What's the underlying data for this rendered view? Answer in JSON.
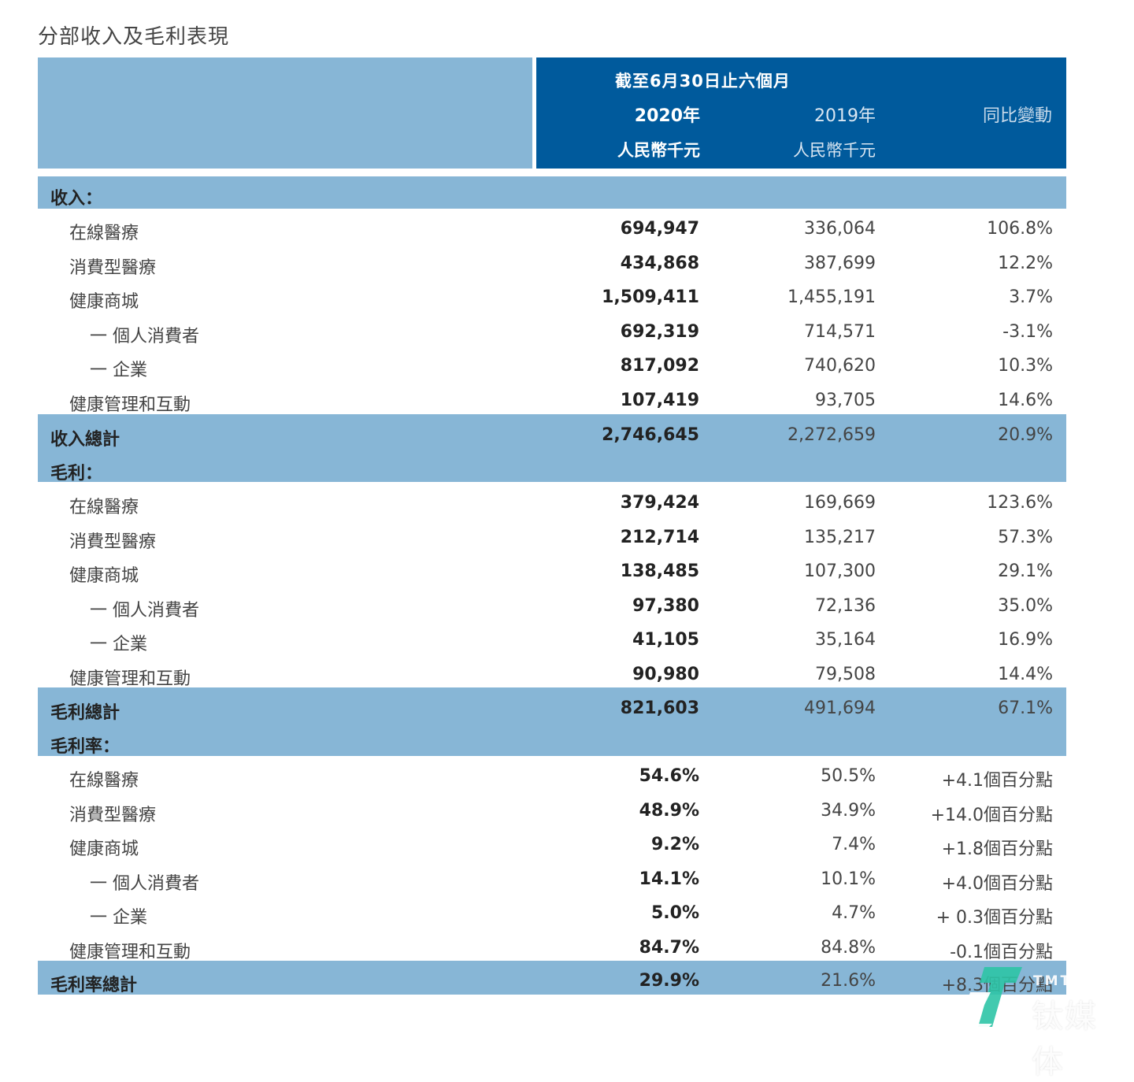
{
  "title": "分部收入及毛利表現",
  "header": {
    "period": "截至6月30日止六個月",
    "columns": [
      {
        "year": "2020年",
        "unit": "人民幣千元"
      },
      {
        "year": "2019年",
        "unit": "人民幣千元"
      },
      {
        "year": "同比變動",
        "unit": ""
      }
    ]
  },
  "sections": {
    "revenue": {
      "label": "收入：",
      "rows": [
        {
          "label": "在線醫療",
          "v2020": "694,947",
          "v2019": "336,064",
          "change": "106.8%"
        },
        {
          "label": "消費型醫療",
          "v2020": "434,868",
          "v2019": "387,699",
          "change": "12.2%"
        },
        {
          "label": "健康商城",
          "v2020": "1,509,411",
          "v2019": "1,455,191",
          "change": "3.7%"
        },
        {
          "label": "一 個人消費者",
          "v2020": "692,319",
          "v2019": "714,571",
          "change": "-3.1%"
        },
        {
          "label": "一 企業",
          "v2020": "817,092",
          "v2019": "740,620",
          "change": "10.3%"
        },
        {
          "label": "健康管理和互動",
          "v2020": "107,419",
          "v2019": "93,705",
          "change": "14.6%"
        }
      ],
      "total": {
        "label": "收入總計",
        "v2020": "2,746,645",
        "v2019": "2,272,659",
        "change": "20.9%"
      }
    },
    "gross_profit": {
      "label": "毛利：",
      "rows": [
        {
          "label": "在線醫療",
          "v2020": "379,424",
          "v2019": "169,669",
          "change": "123.6%"
        },
        {
          "label": "消費型醫療",
          "v2020": "212,714",
          "v2019": "135,217",
          "change": "57.3%"
        },
        {
          "label": "健康商城",
          "v2020": "138,485",
          "v2019": "107,300",
          "change": "29.1%"
        },
        {
          "label": "一 個人消費者",
          "v2020": "97,380",
          "v2019": "72,136",
          "change": "35.0%"
        },
        {
          "label": "一 企業",
          "v2020": "41,105",
          "v2019": "35,164",
          "change": "16.9%"
        },
        {
          "label": "健康管理和互動",
          "v2020": "90,980",
          "v2019": "79,508",
          "change": "14.4%"
        }
      ],
      "total": {
        "label": "毛利總計",
        "v2020": "821,603",
        "v2019": "491,694",
        "change": "67.1%"
      }
    },
    "gross_margin": {
      "label": "毛利率：",
      "rows": [
        {
          "label": "在線醫療",
          "v2020": "54.6%",
          "v2019": "50.5%",
          "change": "+4.1個百分點"
        },
        {
          "label": "消費型醫療",
          "v2020": "48.9%",
          "v2019": "34.9%",
          "change": "+14.0個百分點"
        },
        {
          "label": "健康商城",
          "v2020": "9.2%",
          "v2019": "7.4%",
          "change": "+1.8個百分點"
        },
        {
          "label": "一 個人消費者",
          "v2020": "14.1%",
          "v2019": "10.1%",
          "change": "+4.0個百分點"
        },
        {
          "label": "一 企業",
          "v2020": "5.0%",
          "v2019": "4.7%",
          "change": "+ 0.3個百分點"
        },
        {
          "label": "健康管理和互動",
          "v2020": "84.7%",
          "v2019": "84.8%",
          "change": "-0.1個百分點"
        }
      ],
      "total": {
        "label": "毛利率總計",
        "v2020": "29.9%",
        "v2019": "21.6%",
        "change": "+8.3個百分點"
      }
    }
  },
  "watermark": {
    "brand_en": "TMTPOST",
    "brand_cn": "钛媒体"
  },
  "colors": {
    "header_dark": "#005a9c",
    "band_light": "#87b6d6",
    "watermark_green": "#2ec4a6"
  }
}
